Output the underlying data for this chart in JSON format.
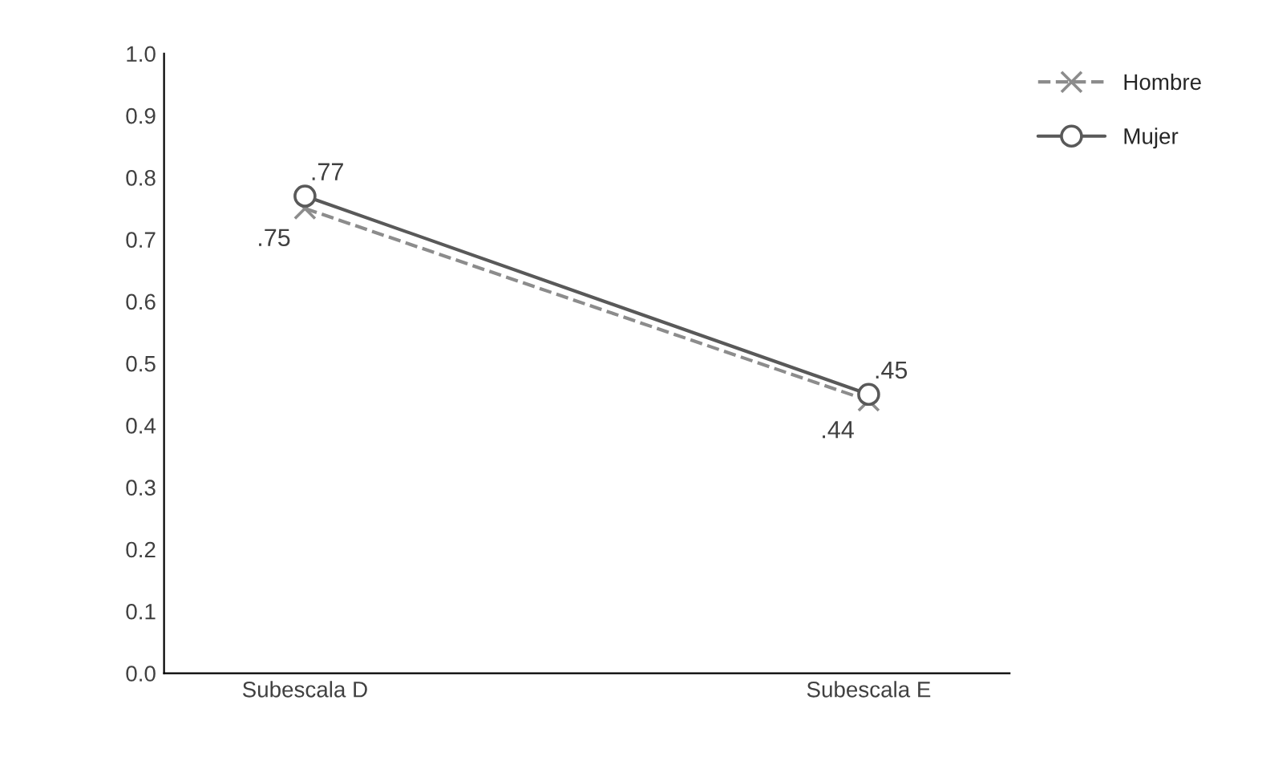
{
  "chart_data": {
    "type": "line",
    "categories": [
      "Subescala D",
      "Subescala E"
    ],
    "series": [
      {
        "name": "Hombre",
        "color": "#8c8c8c",
        "values": [
          0.75,
          0.44
        ],
        "value_labels": [
          ".75",
          ".44"
        ],
        "marker": "cross",
        "line_style": "dashed"
      },
      {
        "name": "Mujer",
        "color": "#595959",
        "values": [
          0.77,
          0.45
        ],
        "value_labels": [
          ".77",
          ".45"
        ],
        "marker": "circle",
        "line_style": "solid"
      }
    ],
    "ylim": [
      0,
      1
    ],
    "yticks": [
      {
        "value": 0,
        "label": "0.0"
      },
      {
        "value": 0.1,
        "label": "0.1"
      },
      {
        "value": 0.2,
        "label": "0.2"
      },
      {
        "value": 0.3,
        "label": "0.3"
      },
      {
        "value": 0.4,
        "label": "0.4"
      },
      {
        "value": 0.5,
        "label": "0.5"
      },
      {
        "value": 0.6,
        "label": "0.6"
      },
      {
        "value": 0.7,
        "label": "0.7"
      },
      {
        "value": 0.8,
        "label": "0.8"
      },
      {
        "value": 0.9,
        "label": "0.9"
      },
      {
        "value": 1,
        "label": "1.0"
      }
    ],
    "grid": false,
    "legend": "top right"
  }
}
